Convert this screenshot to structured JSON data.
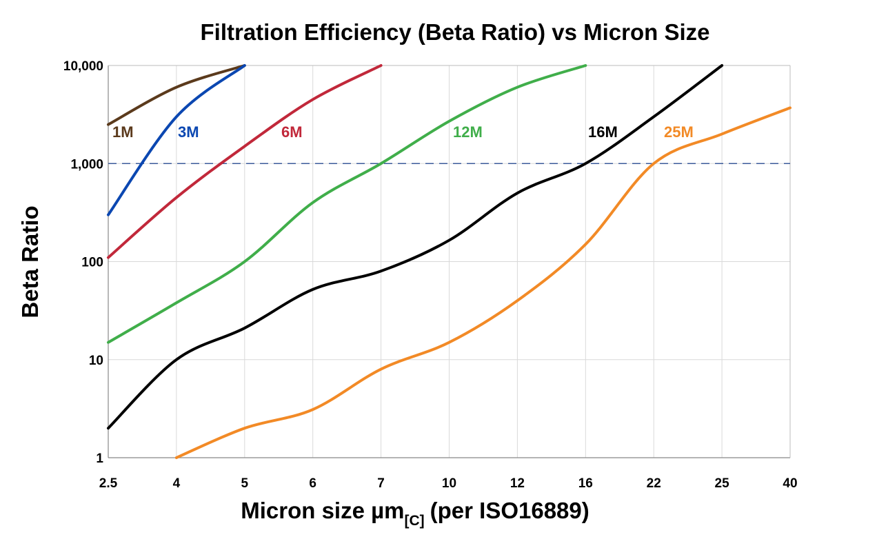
{
  "chart_data": {
    "type": "line",
    "title": "Filtration Efficiency (Beta Ratio) vs Micron Size",
    "xlabel": "Micron size µm",
    "xlabel_subscript": "[C]",
    "xlabel_suffix": "(per ISO16889)",
    "ylabel": "Beta Ratio",
    "x_scale": "categorical",
    "y_scale": "log",
    "ylim": [
      1,
      10000
    ],
    "categories": [
      "2.5",
      "4",
      "5",
      "6",
      "7",
      "10",
      "12",
      "16",
      "22",
      "25",
      "40"
    ],
    "y_ticks": [
      1,
      10,
      100,
      1000,
      10000
    ],
    "y_tick_labels": [
      "1",
      "10",
      "100",
      "1,000",
      "10,000"
    ],
    "grid": true,
    "reference_line": {
      "y": 1000,
      "style": "dashed",
      "color": "#3a5a9a"
    },
    "series": [
      {
        "name": "1M",
        "color": "#5b3a1c",
        "points": [
          [
            "2.5",
            2500
          ],
          [
            "4",
            6000
          ],
          [
            "5",
            10000
          ]
        ]
      },
      {
        "name": "3M",
        "color": "#0b47b1",
        "points": [
          [
            "2.5",
            300
          ],
          [
            "4",
            3000
          ],
          [
            "5",
            10000
          ]
        ]
      },
      {
        "name": "6M",
        "color": "#c1283a",
        "points": [
          [
            "2.5",
            110
          ],
          [
            "4",
            450
          ],
          [
            "5",
            1500
          ],
          [
            "6",
            4500
          ],
          [
            "7",
            10000
          ]
        ]
      },
      {
        "name": "12M",
        "color": "#40ae4a",
        "points": [
          [
            "2.5",
            15
          ],
          [
            "4",
            38
          ],
          [
            "5",
            100
          ],
          [
            "6",
            400
          ],
          [
            "7",
            1000
          ],
          [
            "10",
            2700
          ],
          [
            "12",
            6000
          ],
          [
            "16",
            10000
          ]
        ]
      },
      {
        "name": "16M",
        "color": "#000000",
        "points": [
          [
            "2.5",
            2
          ],
          [
            "4",
            10
          ],
          [
            "5",
            21
          ],
          [
            "6",
            52
          ],
          [
            "7",
            80
          ],
          [
            "10",
            165
          ],
          [
            "12",
            500
          ],
          [
            "16",
            1000
          ],
          [
            "22",
            3000
          ],
          [
            "25",
            10000
          ]
        ]
      },
      {
        "name": "25M",
        "color": "#f28a26",
        "points": [
          [
            "4",
            1
          ],
          [
            "5",
            2
          ],
          [
            "6",
            3.1
          ],
          [
            "7",
            8
          ],
          [
            "10",
            15
          ],
          [
            "12",
            40
          ],
          [
            "16",
            150
          ],
          [
            "22",
            1000
          ],
          [
            "25",
            2000
          ],
          [
            "40",
            3700
          ]
        ]
      }
    ]
  }
}
